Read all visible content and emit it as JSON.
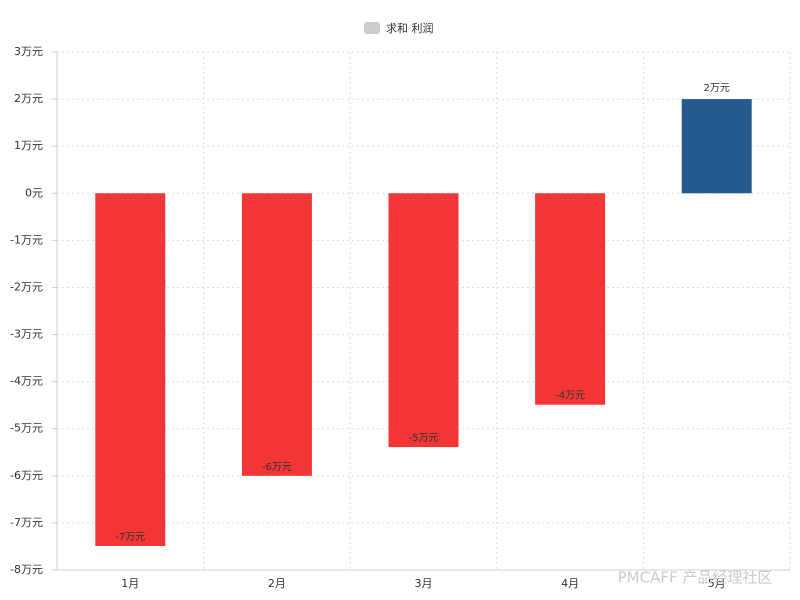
{
  "chart_data": {
    "type": "bar",
    "categories": [
      "1月",
      "2月",
      "3月",
      "4月",
      "5月"
    ],
    "series": [
      {
        "name": "求和 利润",
        "color": "#cccccc",
        "values": [
          -7.49,
          -6,
          -5.39,
          -4.49,
          2
        ],
        "value_labels": [
          "-7万元",
          "-6万元",
          "-5万元",
          "-4万元",
          "2万元"
        ],
        "colors": [
          "#f23535",
          "#f23535",
          "#f23535",
          "#f23535",
          "#245a8e"
        ]
      }
    ],
    "ylim": [
      -8,
      3
    ],
    "yticks": [
      {
        "value": -8,
        "label": "-8万元"
      },
      {
        "value": -7,
        "label": "-7万元"
      },
      {
        "value": -6,
        "label": "-6万元"
      },
      {
        "value": -5,
        "label": "-5万元"
      },
      {
        "value": -4,
        "label": "-4万元"
      },
      {
        "value": -3,
        "label": "-3万元"
      },
      {
        "value": -2,
        "label": "-2万元"
      },
      {
        "value": -1,
        "label": "-1万元"
      },
      {
        "value": 0,
        "label": "0元"
      },
      {
        "value": 1,
        "label": "1万元"
      },
      {
        "value": 2,
        "label": "2万元"
      },
      {
        "value": 3,
        "label": "3万元"
      }
    ],
    "grid": true,
    "legend": "top",
    "watermark": "PMCAFF 产品经理社区"
  }
}
